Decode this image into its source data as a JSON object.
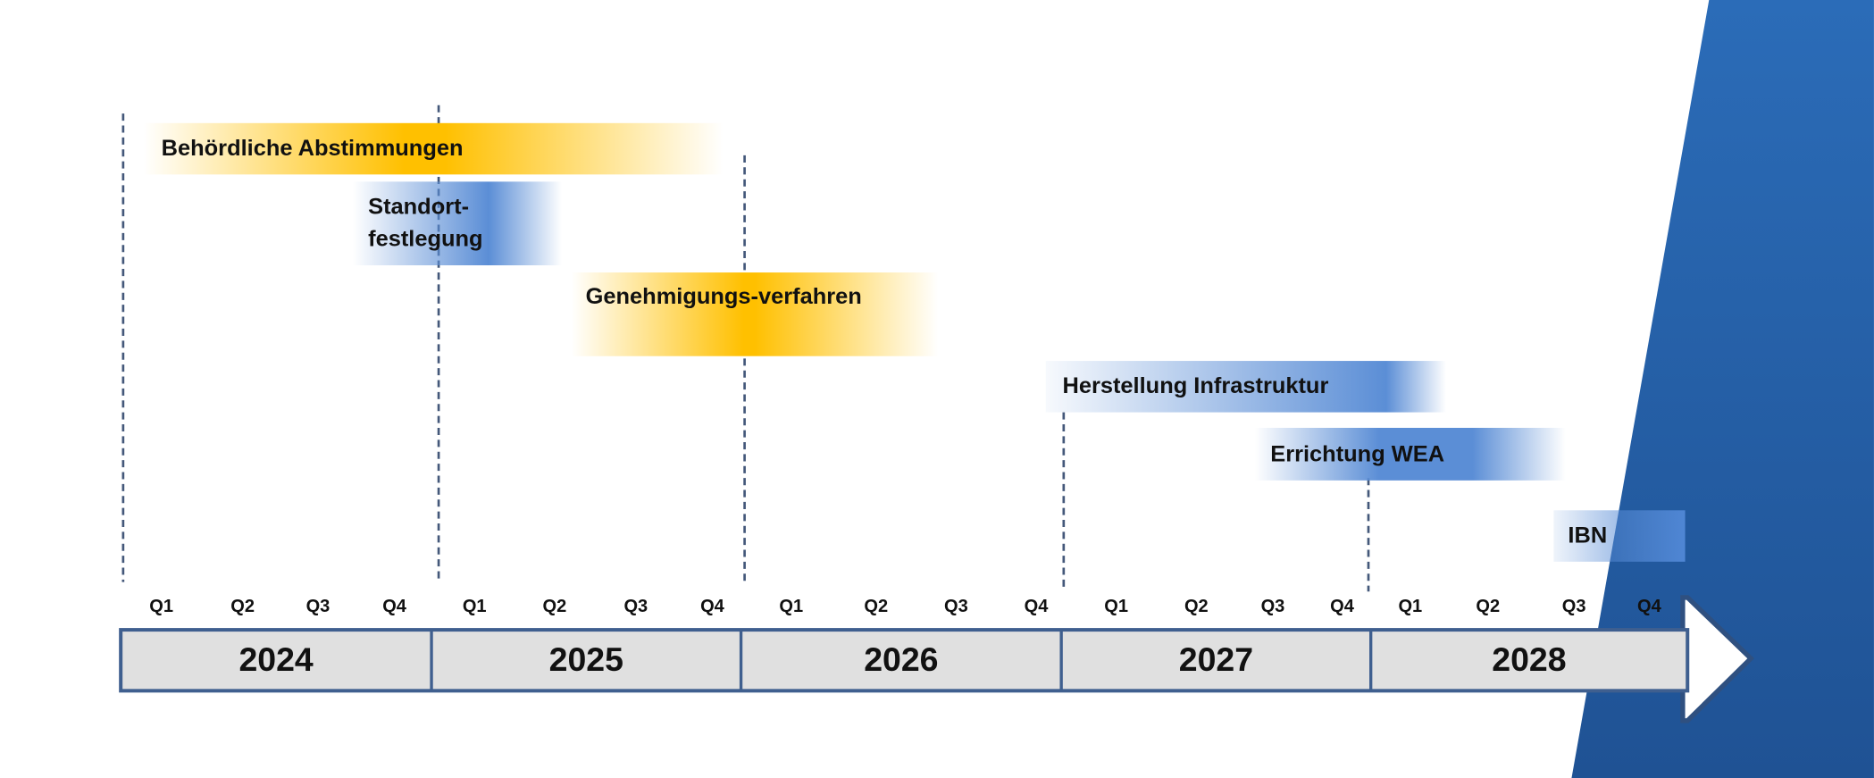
{
  "tasks": [
    {
      "lines": [
        "Behördliche Abstimmungen"
      ]
    },
    {
      "lines": [
        "Standort-",
        "festlegung"
      ]
    },
    {
      "lines": [
        "Genehmigungs-verfahren"
      ]
    },
    {
      "lines": [
        "Herstellung Infrastruktur"
      ]
    },
    {
      "lines": [
        "Errichtung WEA"
      ]
    },
    {
      "lines": [
        "IBN"
      ]
    }
  ],
  "quarters": [
    "Q1",
    "Q2",
    "Q3",
    "Q4"
  ],
  "years": [
    "2024",
    "2025",
    "2026",
    "2027",
    "2028"
  ]
}
